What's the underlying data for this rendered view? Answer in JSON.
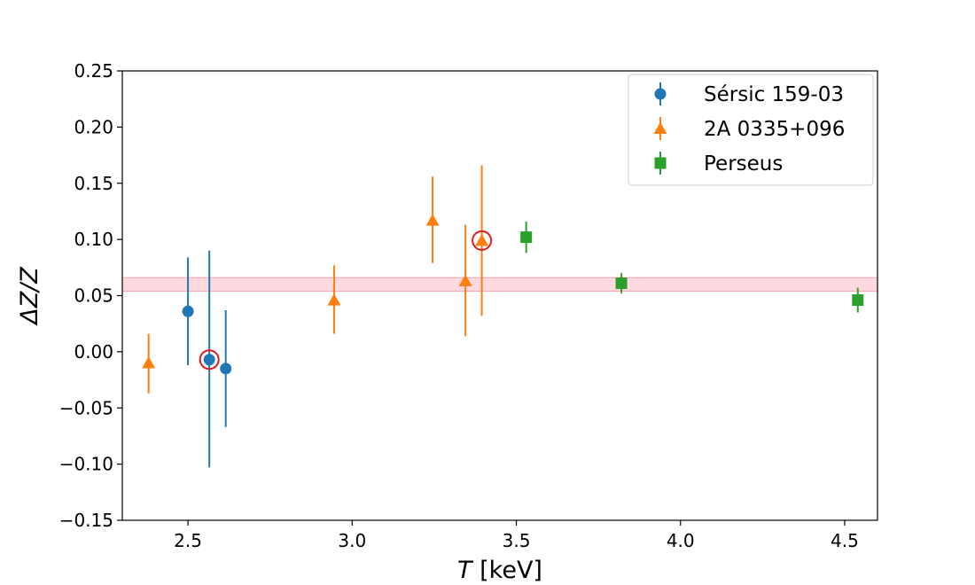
{
  "chart_data": {
    "type": "scatter",
    "title": "",
    "xlabel_var": "T",
    "xlabel_unit": " [keV]",
    "ylabel": "ΔZ/Z",
    "xlim": [
      2.3,
      4.6
    ],
    "ylim": [
      -0.15,
      0.25
    ],
    "xticks": [
      2.5,
      3.0,
      3.5,
      4.0,
      4.5
    ],
    "xtick_labels": [
      "2.5",
      "3.0",
      "3.5",
      "4.0",
      "4.5"
    ],
    "yticks": [
      -0.15,
      -0.1,
      -0.05,
      0.0,
      0.05,
      0.1,
      0.15,
      0.2,
      0.25
    ],
    "ytick_labels": [
      "−0.15",
      "−0.10",
      "−0.05",
      "0.00",
      "0.05",
      "0.10",
      "0.15",
      "0.20",
      "0.25"
    ],
    "grid": false,
    "legend_position": "top-right",
    "reference_band": {
      "y_low": 0.054,
      "y_high": 0.066,
      "color": "#ffc0cb",
      "edge_color": "#ff9fb0"
    },
    "series": [
      {
        "name": "Sérsic 159-03",
        "marker": "circle",
        "color": "#1f77b4",
        "points": [
          {
            "x": 2.5,
            "y": 0.036,
            "ylo": -0.012,
            "yhi": 0.084
          },
          {
            "x": 2.565,
            "y": -0.007,
            "ylo": -0.103,
            "yhi": 0.09
          },
          {
            "x": 2.615,
            "y": -0.015,
            "ylo": -0.067,
            "yhi": 0.037
          }
        ]
      },
      {
        "name": "2A 0335+096",
        "marker": "triangle",
        "color": "#ff7f0e",
        "points": [
          {
            "x": 2.38,
            "y": -0.01,
            "ylo": -0.037,
            "yhi": 0.016
          },
          {
            "x": 2.945,
            "y": 0.046,
            "ylo": 0.016,
            "yhi": 0.077
          },
          {
            "x": 3.245,
            "y": 0.117,
            "ylo": 0.079,
            "yhi": 0.156
          },
          {
            "x": 3.345,
            "y": 0.063,
            "ylo": 0.014,
            "yhi": 0.113
          },
          {
            "x": 3.395,
            "y": 0.099,
            "ylo": 0.032,
            "yhi": 0.166
          }
        ]
      },
      {
        "name": "Perseus",
        "marker": "square",
        "color": "#2ca02c",
        "points": [
          {
            "x": 3.53,
            "y": 0.102,
            "ylo": 0.088,
            "yhi": 0.116
          },
          {
            "x": 3.82,
            "y": 0.061,
            "ylo": 0.052,
            "yhi": 0.07
          },
          {
            "x": 4.54,
            "y": 0.046,
            "ylo": 0.035,
            "yhi": 0.057
          }
        ]
      }
    ],
    "highlighted_points": [
      {
        "x": 2.565,
        "y": -0.007,
        "color": "#e41a1c"
      },
      {
        "x": 3.395,
        "y": 0.099,
        "color": "#e41a1c"
      }
    ]
  }
}
